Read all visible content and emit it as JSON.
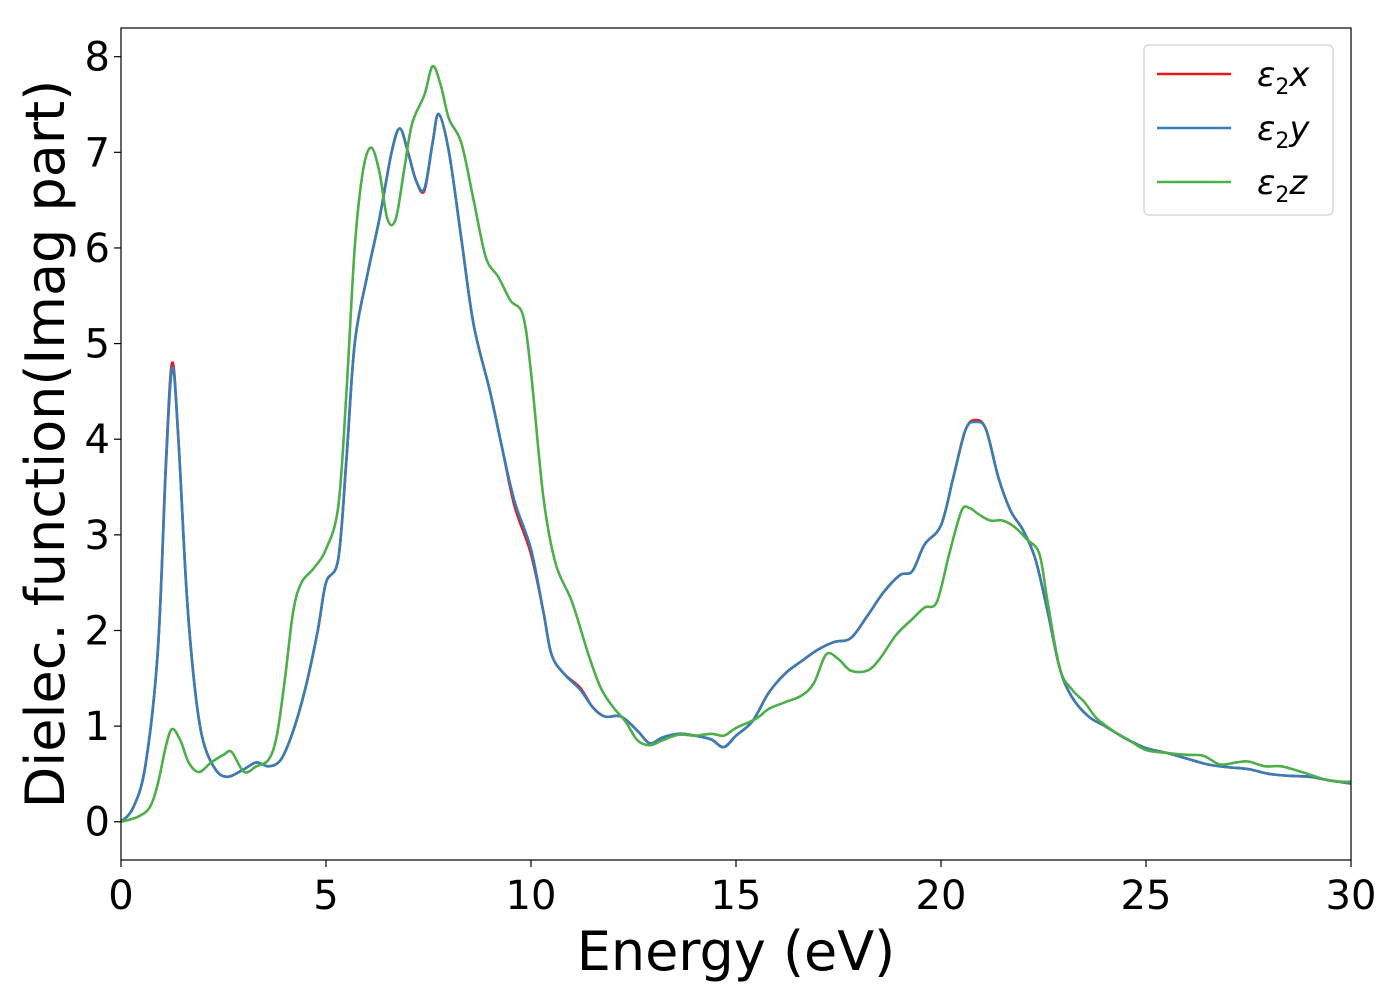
{
  "chart_data": {
    "type": "line",
    "xlabel": "Energy (eV)",
    "ylabel": "Dielec. function(Imag part)",
    "xlim": [
      0,
      30
    ],
    "ylim": [
      -0.4,
      8.3
    ],
    "xticks": [
      0,
      5,
      10,
      15,
      20,
      25,
      30
    ],
    "yticks": [
      0,
      1,
      2,
      3,
      4,
      5,
      6,
      7,
      8
    ],
    "legend_position": "top-right",
    "grid": false,
    "series": [
      {
        "name": "ε2x",
        "label_base": "ε",
        "label_sub": "2",
        "label_var": "x",
        "color": "#e41a1c",
        "points": [
          [
            0,
            0
          ],
          [
            0.3,
            0.15
          ],
          [
            0.6,
            0.6
          ],
          [
            0.9,
            1.8
          ],
          [
            1.1,
            3.8
          ],
          [
            1.25,
            4.8
          ],
          [
            1.4,
            4.0
          ],
          [
            1.6,
            2.4
          ],
          [
            1.8,
            1.4
          ],
          [
            2.0,
            0.85
          ],
          [
            2.3,
            0.55
          ],
          [
            2.6,
            0.47
          ],
          [
            3.0,
            0.55
          ],
          [
            3.3,
            0.62
          ],
          [
            3.6,
            0.58
          ],
          [
            3.9,
            0.65
          ],
          [
            4.2,
            0.95
          ],
          [
            4.5,
            1.4
          ],
          [
            4.8,
            2.0
          ],
          [
            5.0,
            2.5
          ],
          [
            5.3,
            2.75
          ],
          [
            5.5,
            3.8
          ],
          [
            5.7,
            5.0
          ],
          [
            6.0,
            5.7
          ],
          [
            6.3,
            6.3
          ],
          [
            6.6,
            7.0
          ],
          [
            6.8,
            7.25
          ],
          [
            7.0,
            7.0
          ],
          [
            7.2,
            6.7
          ],
          [
            7.4,
            6.6
          ],
          [
            7.6,
            7.1
          ],
          [
            7.75,
            7.4
          ],
          [
            8.0,
            7.0
          ],
          [
            8.3,
            6.1
          ],
          [
            8.6,
            5.2
          ],
          [
            9.0,
            4.5
          ],
          [
            9.3,
            3.9
          ],
          [
            9.6,
            3.3
          ],
          [
            10.0,
            2.8
          ],
          [
            10.3,
            2.2
          ],
          [
            10.5,
            1.75
          ],
          [
            10.8,
            1.55
          ],
          [
            11.2,
            1.4
          ],
          [
            11.5,
            1.2
          ],
          [
            11.8,
            1.1
          ],
          [
            12.2,
            1.1
          ],
          [
            12.6,
            0.95
          ],
          [
            12.9,
            0.82
          ],
          [
            13.2,
            0.88
          ],
          [
            13.6,
            0.92
          ],
          [
            14.0,
            0.9
          ],
          [
            14.4,
            0.86
          ],
          [
            14.7,
            0.78
          ],
          [
            15.0,
            0.9
          ],
          [
            15.4,
            1.05
          ],
          [
            15.8,
            1.35
          ],
          [
            16.2,
            1.55
          ],
          [
            16.6,
            1.68
          ],
          [
            17.0,
            1.8
          ],
          [
            17.4,
            1.88
          ],
          [
            17.8,
            1.92
          ],
          [
            18.2,
            2.15
          ],
          [
            18.6,
            2.4
          ],
          [
            19.0,
            2.58
          ],
          [
            19.3,
            2.62
          ],
          [
            19.6,
            2.9
          ],
          [
            20.0,
            3.1
          ],
          [
            20.3,
            3.6
          ],
          [
            20.6,
            4.1
          ],
          [
            20.85,
            4.2
          ],
          [
            21.1,
            4.1
          ],
          [
            21.4,
            3.6
          ],
          [
            21.7,
            3.25
          ],
          [
            22.0,
            3.05
          ],
          [
            22.3,
            2.75
          ],
          [
            22.6,
            2.2
          ],
          [
            22.9,
            1.6
          ],
          [
            23.2,
            1.3
          ],
          [
            23.6,
            1.1
          ],
          [
            24.0,
            1.0
          ],
          [
            24.5,
            0.87
          ],
          [
            25.0,
            0.77
          ],
          [
            25.5,
            0.72
          ],
          [
            26.0,
            0.66
          ],
          [
            26.5,
            0.6
          ],
          [
            27.0,
            0.57
          ],
          [
            27.5,
            0.55
          ],
          [
            28.0,
            0.5
          ],
          [
            28.5,
            0.48
          ],
          [
            29.0,
            0.47
          ],
          [
            29.5,
            0.43
          ],
          [
            30.0,
            0.4
          ]
        ]
      },
      {
        "name": "ε2y",
        "label_base": "ε",
        "label_sub": "2",
        "label_var": "y",
        "color": "#377eb8",
        "points": [
          [
            0,
            0
          ],
          [
            0.3,
            0.15
          ],
          [
            0.6,
            0.6
          ],
          [
            0.9,
            1.8
          ],
          [
            1.1,
            3.75
          ],
          [
            1.25,
            4.75
          ],
          [
            1.4,
            4.0
          ],
          [
            1.6,
            2.4
          ],
          [
            1.8,
            1.4
          ],
          [
            2.0,
            0.85
          ],
          [
            2.3,
            0.55
          ],
          [
            2.6,
            0.47
          ],
          [
            3.0,
            0.55
          ],
          [
            3.3,
            0.62
          ],
          [
            3.6,
            0.58
          ],
          [
            3.9,
            0.65
          ],
          [
            4.2,
            0.95
          ],
          [
            4.5,
            1.4
          ],
          [
            4.8,
            2.0
          ],
          [
            5.0,
            2.5
          ],
          [
            5.3,
            2.75
          ],
          [
            5.5,
            3.8
          ],
          [
            5.7,
            5.0
          ],
          [
            6.0,
            5.7
          ],
          [
            6.3,
            6.3
          ],
          [
            6.6,
            7.0
          ],
          [
            6.8,
            7.25
          ],
          [
            7.0,
            7.0
          ],
          [
            7.2,
            6.7
          ],
          [
            7.4,
            6.62
          ],
          [
            7.6,
            7.1
          ],
          [
            7.75,
            7.4
          ],
          [
            8.0,
            7.0
          ],
          [
            8.3,
            6.1
          ],
          [
            8.6,
            5.2
          ],
          [
            9.0,
            4.5
          ],
          [
            9.3,
            3.9
          ],
          [
            9.6,
            3.35
          ],
          [
            10.0,
            2.85
          ],
          [
            10.3,
            2.2
          ],
          [
            10.5,
            1.75
          ],
          [
            10.8,
            1.55
          ],
          [
            11.2,
            1.38
          ],
          [
            11.5,
            1.2
          ],
          [
            11.8,
            1.1
          ],
          [
            12.2,
            1.1
          ],
          [
            12.6,
            0.95
          ],
          [
            12.9,
            0.82
          ],
          [
            13.2,
            0.88
          ],
          [
            13.6,
            0.92
          ],
          [
            14.0,
            0.9
          ],
          [
            14.4,
            0.86
          ],
          [
            14.7,
            0.78
          ],
          [
            15.0,
            0.9
          ],
          [
            15.4,
            1.05
          ],
          [
            15.8,
            1.35
          ],
          [
            16.2,
            1.55
          ],
          [
            16.6,
            1.68
          ],
          [
            17.0,
            1.8
          ],
          [
            17.4,
            1.88
          ],
          [
            17.8,
            1.92
          ],
          [
            18.2,
            2.15
          ],
          [
            18.6,
            2.4
          ],
          [
            19.0,
            2.58
          ],
          [
            19.3,
            2.62
          ],
          [
            19.6,
            2.9
          ],
          [
            20.0,
            3.1
          ],
          [
            20.3,
            3.6
          ],
          [
            20.6,
            4.1
          ],
          [
            20.85,
            4.18
          ],
          [
            21.1,
            4.1
          ],
          [
            21.4,
            3.6
          ],
          [
            21.7,
            3.25
          ],
          [
            22.0,
            3.05
          ],
          [
            22.3,
            2.75
          ],
          [
            22.6,
            2.2
          ],
          [
            22.9,
            1.6
          ],
          [
            23.2,
            1.3
          ],
          [
            23.6,
            1.1
          ],
          [
            24.0,
            1.0
          ],
          [
            24.5,
            0.87
          ],
          [
            25.0,
            0.77
          ],
          [
            25.5,
            0.72
          ],
          [
            26.0,
            0.66
          ],
          [
            26.5,
            0.6
          ],
          [
            27.0,
            0.57
          ],
          [
            27.5,
            0.55
          ],
          [
            28.0,
            0.5
          ],
          [
            28.5,
            0.48
          ],
          [
            29.0,
            0.47
          ],
          [
            29.5,
            0.43
          ],
          [
            30.0,
            0.4
          ]
        ]
      },
      {
        "name": "ε2z",
        "label_base": "ε",
        "label_sub": "2",
        "label_var": "z",
        "color": "#4daf4a",
        "points": [
          [
            0,
            0
          ],
          [
            0.4,
            0.05
          ],
          [
            0.7,
            0.15
          ],
          [
            0.9,
            0.4
          ],
          [
            1.1,
            0.8
          ],
          [
            1.25,
            0.97
          ],
          [
            1.45,
            0.85
          ],
          [
            1.65,
            0.62
          ],
          [
            1.9,
            0.52
          ],
          [
            2.2,
            0.62
          ],
          [
            2.5,
            0.7
          ],
          [
            2.7,
            0.73
          ],
          [
            3.0,
            0.52
          ],
          [
            3.3,
            0.58
          ],
          [
            3.6,
            0.65
          ],
          [
            3.8,
            0.9
          ],
          [
            4.0,
            1.5
          ],
          [
            4.2,
            2.2
          ],
          [
            4.4,
            2.5
          ],
          [
            4.7,
            2.65
          ],
          [
            5.0,
            2.85
          ],
          [
            5.3,
            3.3
          ],
          [
            5.5,
            4.5
          ],
          [
            5.7,
            6.0
          ],
          [
            5.9,
            6.8
          ],
          [
            6.1,
            7.05
          ],
          [
            6.3,
            6.8
          ],
          [
            6.5,
            6.3
          ],
          [
            6.7,
            6.3
          ],
          [
            6.9,
            6.8
          ],
          [
            7.1,
            7.3
          ],
          [
            7.4,
            7.6
          ],
          [
            7.6,
            7.9
          ],
          [
            7.8,
            7.7
          ],
          [
            8.0,
            7.35
          ],
          [
            8.3,
            7.1
          ],
          [
            8.6,
            6.5
          ],
          [
            8.9,
            5.9
          ],
          [
            9.2,
            5.7
          ],
          [
            9.5,
            5.45
          ],
          [
            9.8,
            5.3
          ],
          [
            10.0,
            4.7
          ],
          [
            10.3,
            3.4
          ],
          [
            10.6,
            2.7
          ],
          [
            11.0,
            2.3
          ],
          [
            11.4,
            1.75
          ],
          [
            11.7,
            1.4
          ],
          [
            12.0,
            1.2
          ],
          [
            12.3,
            1.05
          ],
          [
            12.6,
            0.85
          ],
          [
            12.9,
            0.8
          ],
          [
            13.2,
            0.85
          ],
          [
            13.6,
            0.91
          ],
          [
            14.0,
            0.9
          ],
          [
            14.4,
            0.92
          ],
          [
            14.7,
            0.9
          ],
          [
            15.0,
            0.98
          ],
          [
            15.5,
            1.08
          ],
          [
            15.8,
            1.18
          ],
          [
            16.2,
            1.25
          ],
          [
            16.6,
            1.32
          ],
          [
            16.9,
            1.45
          ],
          [
            17.2,
            1.75
          ],
          [
            17.5,
            1.7
          ],
          [
            17.8,
            1.58
          ],
          [
            18.2,
            1.58
          ],
          [
            18.5,
            1.7
          ],
          [
            18.9,
            1.95
          ],
          [
            19.3,
            2.12
          ],
          [
            19.6,
            2.24
          ],
          [
            19.9,
            2.3
          ],
          [
            20.2,
            2.8
          ],
          [
            20.5,
            3.25
          ],
          [
            20.7,
            3.28
          ],
          [
            20.9,
            3.22
          ],
          [
            21.2,
            3.15
          ],
          [
            21.5,
            3.15
          ],
          [
            21.8,
            3.08
          ],
          [
            22.1,
            2.95
          ],
          [
            22.4,
            2.8
          ],
          [
            22.6,
            2.3
          ],
          [
            22.9,
            1.6
          ],
          [
            23.2,
            1.38
          ],
          [
            23.5,
            1.25
          ],
          [
            23.8,
            1.08
          ],
          [
            24.2,
            0.95
          ],
          [
            24.6,
            0.85
          ],
          [
            25.0,
            0.75
          ],
          [
            25.5,
            0.72
          ],
          [
            26.0,
            0.7
          ],
          [
            26.4,
            0.69
          ],
          [
            26.8,
            0.6
          ],
          [
            27.2,
            0.62
          ],
          [
            27.5,
            0.63
          ],
          [
            27.9,
            0.58
          ],
          [
            28.3,
            0.58
          ],
          [
            28.8,
            0.52
          ],
          [
            29.3,
            0.45
          ],
          [
            29.7,
            0.42
          ],
          [
            30.0,
            0.42
          ]
        ]
      }
    ]
  }
}
